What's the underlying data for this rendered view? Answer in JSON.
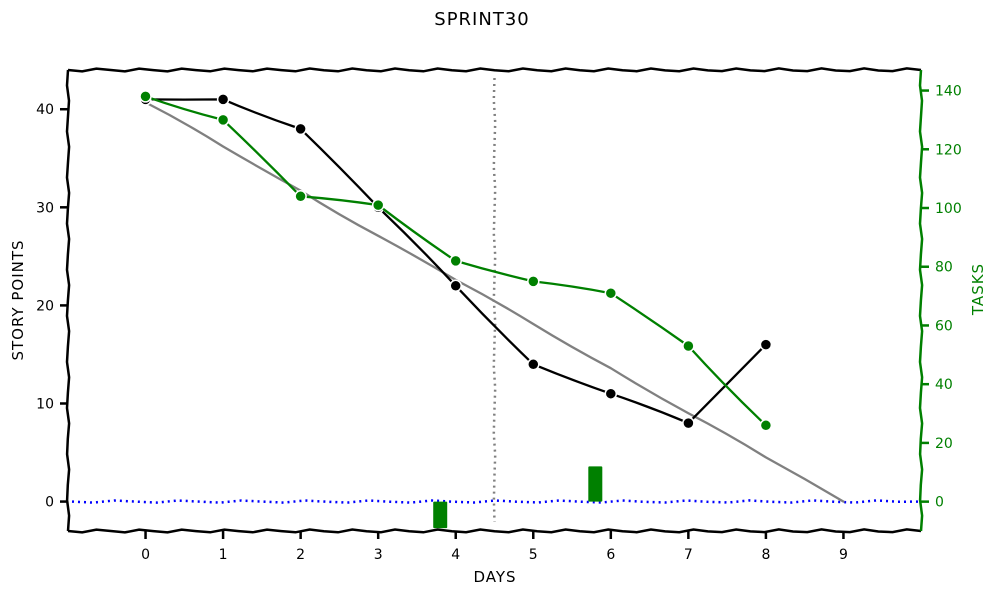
{
  "chart_data": {
    "type": "line",
    "title": "SPRINT30",
    "xlabel": "DAYS",
    "ylabel_left": "STORY POINTS",
    "ylabel_right": "TASKS",
    "xlim": [
      -1,
      10
    ],
    "ylim_left": [
      -3,
      44
    ],
    "ylim_right": [
      -10,
      147
    ],
    "x_ticks": [
      0,
      1,
      2,
      3,
      4,
      5,
      6,
      7,
      8,
      9
    ],
    "y_ticks_left": [
      0,
      10,
      20,
      30,
      40
    ],
    "y_ticks_right": [
      0,
      20,
      40,
      60,
      80,
      100,
      120,
      140
    ],
    "series": [
      {
        "name": "",
        "axis": "left",
        "color": "#808080",
        "x": [
          0,
          1,
          2,
          3,
          4,
          5,
          6,
          7,
          8,
          9
        ],
        "values": [
          40.7,
          36.2,
          31.7,
          27.1,
          22.6,
          18.1,
          13.6,
          9.0,
          4.5,
          0
        ],
        "markers": false
      },
      {
        "name": "",
        "axis": "left",
        "color": "#000000",
        "x": [
          0,
          1,
          2,
          3,
          4,
          5,
          6,
          7,
          8
        ],
        "values": [
          41,
          41,
          38,
          30,
          22,
          14,
          11,
          8,
          16
        ],
        "markers": true
      },
      {
        "name": "",
        "axis": "right",
        "color": "#008000",
        "x": [
          0,
          1,
          2,
          3,
          4,
          5,
          6,
          7,
          8
        ],
        "values": [
          138,
          130,
          104,
          101,
          82,
          75,
          71,
          53,
          26
        ],
        "markers": true
      }
    ],
    "bars": {
      "axis": "right",
      "color": "#008000",
      "x": [
        3.8,
        5.8
      ],
      "values": [
        -9,
        12
      ]
    },
    "reference_lines": {
      "vertical_x": 4.5,
      "vertical_color": "#808080",
      "zero_line_color": "#0000ff"
    },
    "colors": {
      "left_axis": "#000000",
      "right_axis": "#008000"
    }
  }
}
